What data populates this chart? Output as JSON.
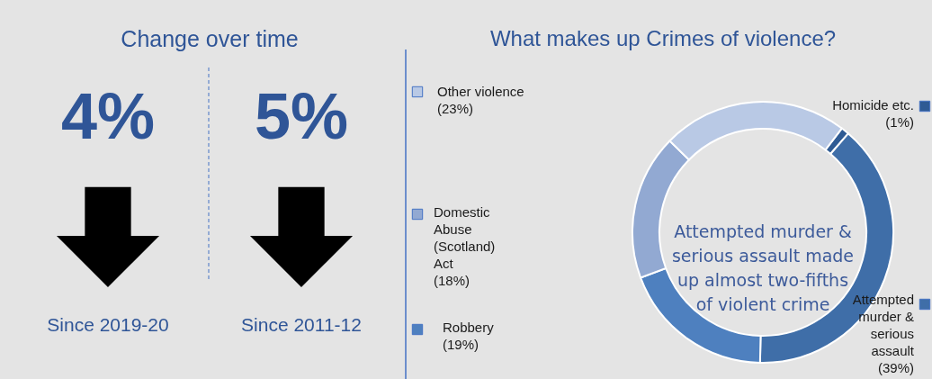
{
  "chart_data": [
    {
      "type": "other",
      "title": "Change over time",
      "annotations": [
        "4%",
        "Since 2019-20",
        "5%",
        "Since 2011-12"
      ]
    },
    {
      "type": "donut",
      "title": "What makes up Crimes of violence?",
      "categories": [
        "Homicide etc.",
        "Attempted murder & serious assault",
        "Robbery",
        "Domestic Abuse (Scotland) Act",
        "Other violence"
      ],
      "values": [
        1,
        39,
        19,
        18,
        23
      ],
      "colors": [
        "#2f5b94",
        "#3f6ea8",
        "#4e80bf",
        "#92a9d2",
        "#b9c9e5"
      ],
      "value_labels": [
        "(1%)",
        "(39%)",
        "(19%)",
        "(18%)",
        "(23%)"
      ],
      "legend": "left",
      "annotations": [
        "Attempted murder & serious assault made up almost two-fifths of violent crime"
      ]
    }
  ]
}
